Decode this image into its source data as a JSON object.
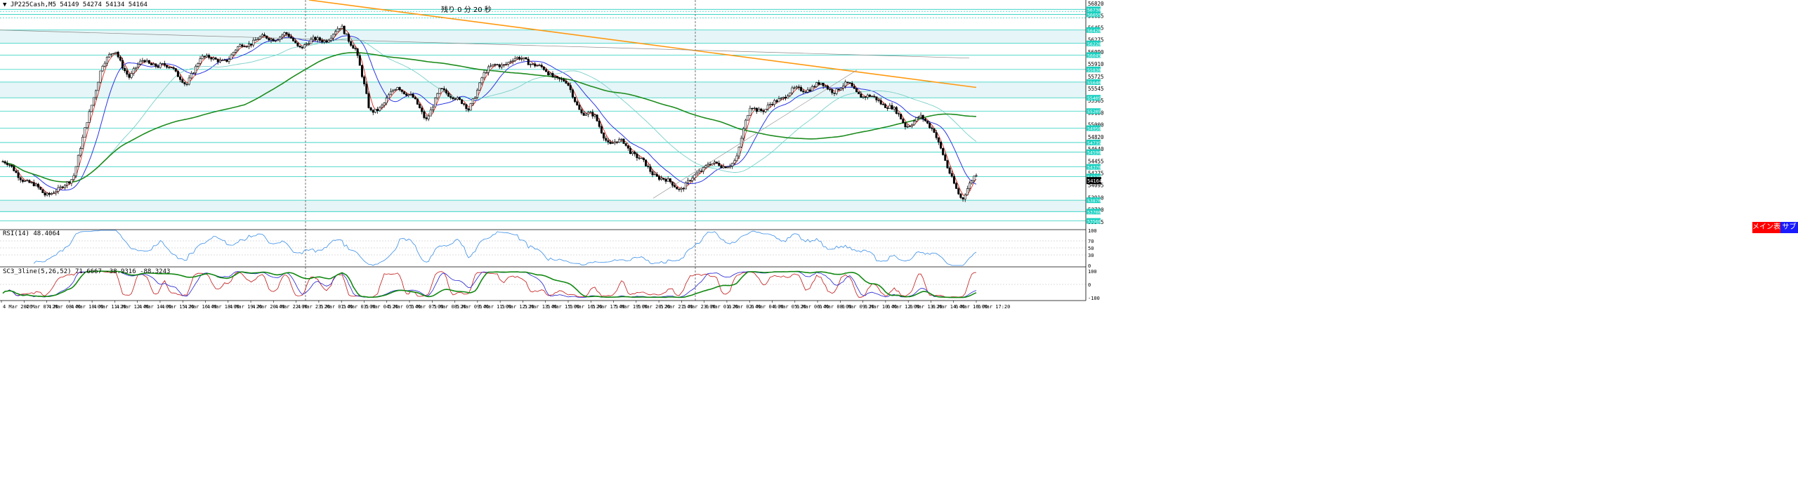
{
  "header": {
    "symbol_line": "▼ JP225Cash,M5  54149 54274 54134 54164",
    "countdown": "残り 0 分 20 秒"
  },
  "buttons": {
    "main_label": "メイン表示",
    "sub_label": "サブ表示"
  },
  "colors": {
    "candle": "#000000",
    "level_line": "#00c8b4",
    "level_band": "#e6f5f7",
    "ma_fast": "#d8261f",
    "ma_mid": "#2b35e0",
    "ma_slow": "#7ad0c8",
    "ma_long": "#1e8c1e",
    "trend_orange": "#ff9910",
    "rsi_line": "#3a8ee6",
    "stoch_main": "#c01818",
    "stoch_signal": "#2020d0",
    "stoch_long": "#118811",
    "separator": "#555555",
    "price_tag": "#000000",
    "level_tag": "#18d0c0"
  },
  "chart_data": {
    "type": "candlestick",
    "title": "JP225Cash,M5",
    "ohlc_last": {
      "open": 54149,
      "high": 54274,
      "low": 54134,
      "close": 54164
    },
    "current_price": 54164,
    "price_axis_labels": [
      56820,
      56635,
      56455,
      56275,
      56090,
      55910,
      55725,
      55545,
      55365,
      55180,
      55000,
      54820,
      54640,
      54455,
      54275,
      54095,
      53910,
      53730,
      53545
    ],
    "level_tags": [
      56730,
      56655,
      56420,
      56220,
      56045,
      55830,
      55640,
      55405,
      55205,
      54950,
      54735,
      54590,
      54370,
      54225,
      53870,
      53700,
      53560
    ],
    "level_bands": [
      [
        56420,
        56220
      ],
      [
        55640,
        55405
      ],
      [
        53870,
        53700
      ]
    ],
    "x_tick_labels": [
      "4 Mar 2026",
      "4 Mar 07:20",
      "4 Mar 08:40",
      "4 Mar 10:00",
      "4 Mar 11:20",
      "4 Mar 12:40",
      "4 Mar 14:00",
      "4 Mar 15:20",
      "4 Mar 16:40",
      "4 Mar 18:00",
      "4 Mar 19:20",
      "4 Mar 20:40",
      "4 Mar 22:00",
      "4 Mar 23:20",
      "5 Mar 01:40",
      "5 Mar 03:00",
      "5 Mar 04:20",
      "5 Mar 05:40",
      "5 Mar 07:00",
      "5 Mar 08:20",
      "5 Mar 09:40",
      "5 Mar 11:00",
      "5 Mar 12:20",
      "5 Mar 13:40",
      "5 Mar 15:00",
      "5 Mar 16:20",
      "5 Mar 17:40",
      "5 Mar 19:00",
      "5 Mar 20:20",
      "5 Mar 21:40",
      "5 Mar 23:00",
      "6 Mar 01:20",
      "6 Mar 02:40",
      "6 Mar 04:00",
      "6 Mar 05:20",
      "6 Mar 06:40",
      "6 Mar 08:00",
      "6 Mar 09:20",
      "6 Mar 10:40",
      "6 Mar 12:00",
      "6 Mar 13:20",
      "6 Mar 14:40",
      "6 Mar 16:00",
      "6 Mar 17:20"
    ],
    "price_path": [
      [
        0,
        54450
      ],
      [
        2,
        54100
      ],
      [
        3,
        53980
      ],
      [
        4,
        54000
      ],
      [
        5,
        54250
      ],
      [
        6,
        55050
      ],
      [
        7,
        55900
      ],
      [
        8,
        56100
      ],
      [
        9,
        55700
      ],
      [
        10,
        56000
      ],
      [
        11,
        55850
      ],
      [
        12,
        55900
      ],
      [
        13,
        55550
      ],
      [
        14,
        56050
      ],
      [
        15,
        55950
      ],
      [
        16,
        56000
      ],
      [
        17,
        56200
      ],
      [
        18,
        56280
      ],
      [
        19,
        56300
      ],
      [
        20,
        56350
      ],
      [
        21,
        56180
      ],
      [
        22,
        56250
      ],
      [
        23,
        56300
      ],
      [
        24,
        56450
      ],
      [
        25,
        56150
      ],
      [
        26,
        55200
      ],
      [
        27,
        55300
      ],
      [
        28,
        55600
      ],
      [
        29,
        55400
      ],
      [
        30,
        55100
      ],
      [
        31,
        55500
      ],
      [
        32,
        55450
      ],
      [
        33,
        55200
      ],
      [
        34,
        55750
      ],
      [
        35,
        55900
      ],
      [
        36,
        55950
      ],
      [
        37,
        56000
      ],
      [
        38,
        55850
      ],
      [
        39,
        55750
      ],
      [
        40,
        55600
      ],
      [
        41,
        55200
      ],
      [
        42,
        55100
      ],
      [
        43,
        54700
      ],
      [
        44,
        54750
      ],
      [
        45,
        54500
      ],
      [
        46,
        54300
      ],
      [
        47,
        54150
      ],
      [
        48,
        54050
      ],
      [
        49,
        54200
      ],
      [
        50,
        54450
      ],
      [
        51,
        54350
      ],
      [
        52,
        54500
      ],
      [
        53,
        55300
      ],
      [
        54,
        55200
      ],
      [
        55,
        55400
      ],
      [
        56,
        55500
      ],
      [
        57,
        55550
      ],
      [
        58,
        55600
      ],
      [
        59,
        55520
      ],
      [
        60,
        55600
      ],
      [
        61,
        55420
      ],
      [
        62,
        55380
      ],
      [
        63,
        55250
      ],
      [
        64,
        55000
      ],
      [
        65,
        55100
      ],
      [
        66,
        54950
      ],
      [
        67,
        54300
      ],
      [
        68,
        53900
      ],
      [
        69,
        54250
      ]
    ],
    "x_count": 70,
    "rsi": {
      "label": "RSI(14) 48.4064",
      "period": 14,
      "last": 48.4064,
      "axis_labels": [
        100,
        70,
        50,
        30,
        0
      ],
      "ylim": [
        0,
        100
      ]
    },
    "stoch_panel": {
      "label": "SC3_3line(5,26,52) 71.6667 -38.9316 -88.3243",
      "params": [
        5,
        26,
        52
      ],
      "values": [
        71.6667,
        -38.9316,
        -88.3243
      ],
      "axis_labels": [
        100,
        0.0,
        -100
      ],
      "ylim": [
        -100,
        100
      ]
    }
  }
}
